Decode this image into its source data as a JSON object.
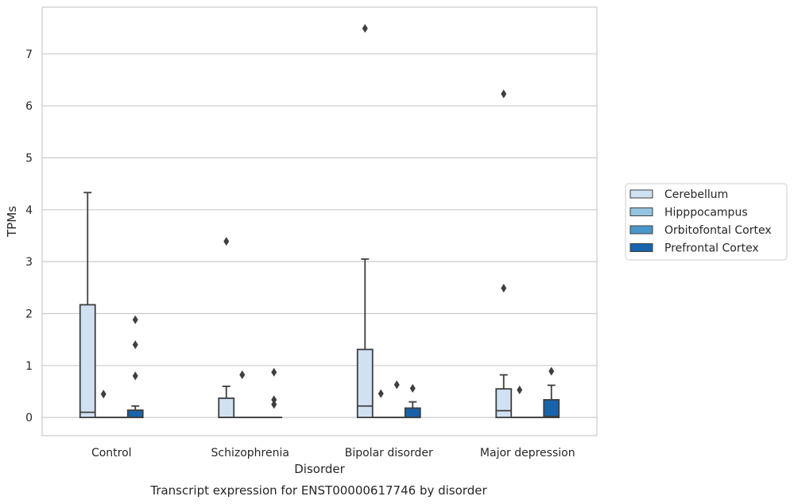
{
  "chart_data": {
    "type": "box",
    "title": "Transcript expression for ENST00000617746 by disorder",
    "xlabel": "Disorder",
    "ylabel": "TPMs",
    "categories": [
      "Control",
      "Schizophrenia",
      "Bipolar disorder",
      "Major depression"
    ],
    "ylim": [
      -0.35,
      7.9
    ],
    "yticks": [
      0,
      1,
      2,
      3,
      4,
      5,
      6,
      7
    ],
    "grid": true,
    "legend_position": "right",
    "series": [
      {
        "name": "Cerebellum",
        "color": "#d0e1f2",
        "boxes": [
          {
            "q1": 0,
            "median": 0.1,
            "q3": 2.17,
            "whisker_low": 0,
            "whisker_high": 4.33,
            "outliers": []
          },
          {
            "q1": 0,
            "median": 0,
            "q3": 0.37,
            "whisker_low": 0,
            "whisker_high": 0.6,
            "outliers": [
              3.39
            ]
          },
          {
            "q1": 0,
            "median": 0.22,
            "q3": 1.31,
            "whisker_low": 0,
            "whisker_high": 3.05,
            "outliers": [
              7.49
            ]
          },
          {
            "q1": 0,
            "median": 0.13,
            "q3": 0.55,
            "whisker_low": 0,
            "whisker_high": 0.82,
            "outliers": [
              2.49,
              6.23
            ]
          }
        ]
      },
      {
        "name": "Hipppocampus",
        "color": "#94c4df",
        "boxes": [
          {
            "q1": 0,
            "median": 0,
            "q3": 0,
            "whisker_low": 0,
            "whisker_high": 0,
            "outliers": [
              0.45
            ]
          },
          {
            "q1": 0,
            "median": 0,
            "q3": 0,
            "whisker_low": 0,
            "whisker_high": 0,
            "outliers": [
              0.82
            ]
          },
          {
            "q1": 0,
            "median": 0,
            "q3": 0,
            "whisker_low": 0,
            "whisker_high": 0,
            "outliers": [
              0.46
            ]
          },
          {
            "q1": 0,
            "median": 0,
            "q3": 0,
            "whisker_low": 0,
            "whisker_high": 0,
            "outliers": [
              0.53
            ]
          }
        ]
      },
      {
        "name": "Orbitofontal Cortex",
        "color": "#4a98c9",
        "boxes": [
          {
            "q1": 0,
            "median": 0,
            "q3": 0,
            "whisker_low": 0,
            "whisker_high": 0,
            "outliers": []
          },
          {
            "q1": 0,
            "median": 0,
            "q3": 0,
            "whisker_low": 0,
            "whisker_high": 0,
            "outliers": []
          },
          {
            "q1": 0,
            "median": 0,
            "q3": 0,
            "whisker_low": 0,
            "whisker_high": 0,
            "outliers": [
              0.63
            ]
          },
          {
            "q1": 0,
            "median": 0,
            "q3": 0,
            "whisker_low": 0,
            "whisker_high": 0,
            "outliers": []
          }
        ]
      },
      {
        "name": "Prefrontal Cortex",
        "color": "#1764ab",
        "boxes": [
          {
            "q1": 0,
            "median": 0,
            "q3": 0.14,
            "whisker_low": 0,
            "whisker_high": 0.22,
            "outliers": [
              0.8,
              1.4,
              1.88
            ]
          },
          {
            "q1": 0,
            "median": 0,
            "q3": 0,
            "whisker_low": 0,
            "whisker_high": 0,
            "outliers": [
              0.25,
              0.34,
              0.87
            ]
          },
          {
            "q1": 0,
            "median": 0,
            "q3": 0.18,
            "whisker_low": 0,
            "whisker_high": 0.3,
            "outliers": [
              0.56
            ]
          },
          {
            "q1": 0,
            "median": 0.02,
            "q3": 0.34,
            "whisker_low": 0,
            "whisker_high": 0.62,
            "outliers": [
              0.89
            ]
          }
        ]
      }
    ]
  }
}
